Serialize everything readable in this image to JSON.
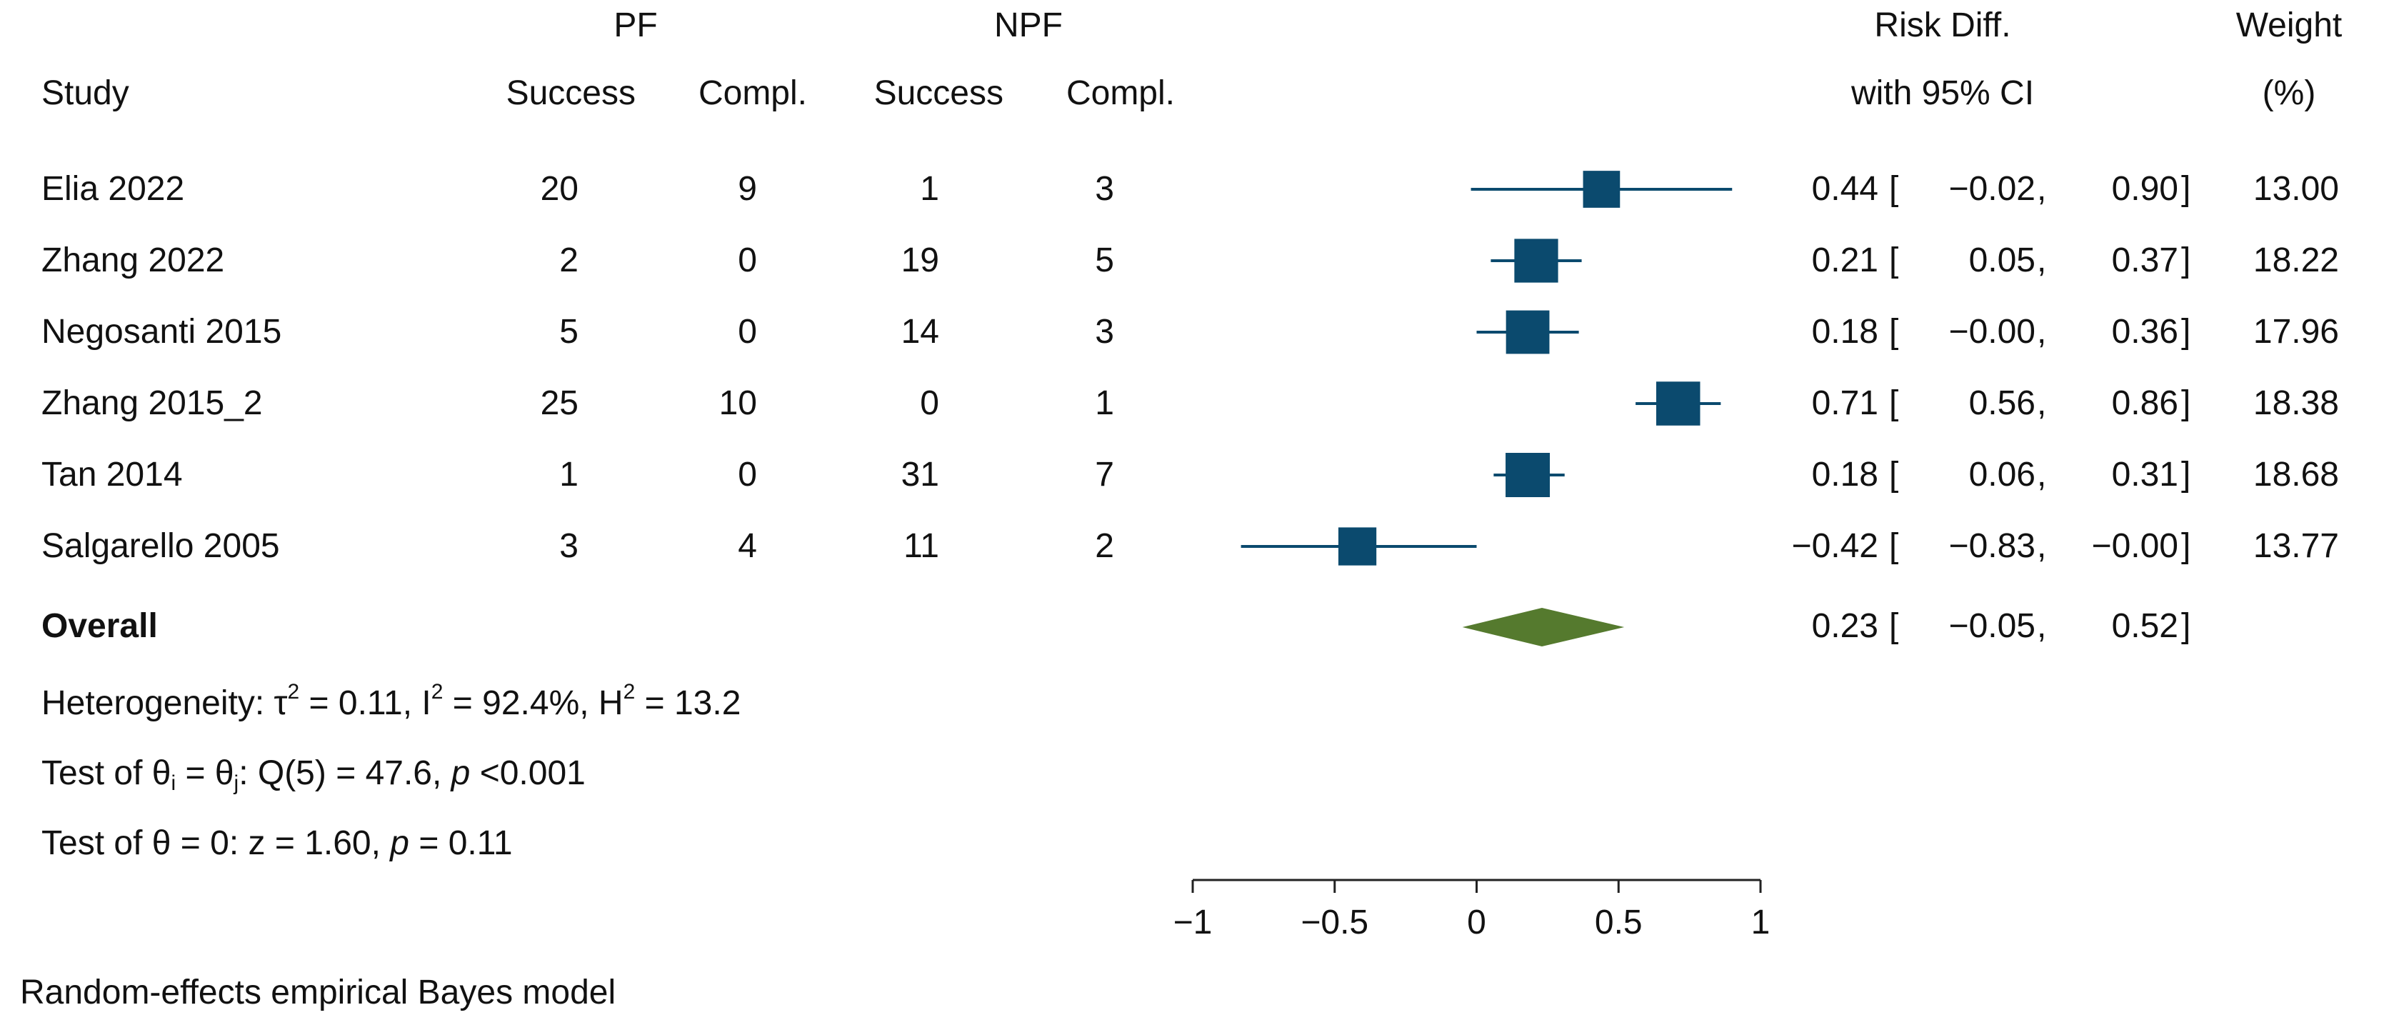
{
  "header": {
    "col_study": "Study",
    "group1": "PF",
    "group2": "NPF",
    "success": "Success",
    "compl": "Compl.",
    "rd_line1": "Risk Diff.",
    "rd_line2": "with 95% CI",
    "weight_line1": "Weight",
    "weight_line2": "(%)"
  },
  "rows": [
    {
      "study": "Elia 2022",
      "pf_success": "20",
      "pf_compl": "9",
      "npf_success": "1",
      "npf_compl": "3",
      "rd": "0.44",
      "lo": "−0.02",
      "hi": "0.90",
      "weight": "13.00"
    },
    {
      "study": "Zhang 2022",
      "pf_success": "2",
      "pf_compl": "0",
      "npf_success": "19",
      "npf_compl": "5",
      "rd": "0.21",
      "lo": "0.05",
      "hi": "0.37",
      "weight": "18.22"
    },
    {
      "study": "Negosanti 2015",
      "pf_success": "5",
      "pf_compl": "0",
      "npf_success": "14",
      "npf_compl": "3",
      "rd": "0.18",
      "lo": "−0.00",
      "hi": "0.36",
      "weight": "17.96"
    },
    {
      "study": "Zhang 2015_2",
      "pf_success": "25",
      "pf_compl": "10",
      "npf_success": "0",
      "npf_compl": "1",
      "rd": "0.71",
      "lo": "0.56",
      "hi": "0.86",
      "weight": "18.38"
    },
    {
      "study": "Tan 2014",
      "pf_success": "1",
      "pf_compl": "0",
      "npf_success": "31",
      "npf_compl": "7",
      "rd": "0.18",
      "lo": "0.06",
      "hi": "0.31",
      "weight": "18.68"
    },
    {
      "study": "Salgarello 2005",
      "pf_success": "3",
      "pf_compl": "4",
      "npf_success": "11",
      "npf_compl": "2",
      "rd": "−0.42",
      "lo": "−0.83",
      "hi": "−0.00",
      "weight": "13.77"
    }
  ],
  "overall": {
    "label": "Overall",
    "rd": "0.23",
    "lo": "−0.05",
    "hi": "0.52"
  },
  "stats": {
    "het_prefix": "Heterogeneity: τ",
    "het_tau_val": " = 0.11, I",
    "het_i2_val": " = 92.4%, H",
    "het_h2_val": " = 13.2",
    "test1_prefix": "Test of θ",
    "test1_sub_i": "i",
    "test1_mid": " = θ",
    "test1_sub_j": "j",
    "test1_suffix": ": Q(5) = 47.6, ",
    "p": "p",
    "test1_p": " <0.001",
    "test2_prefix": "Test of θ = 0: z = 1.60, ",
    "test2_p": " = 0.11",
    "sup2": "2"
  },
  "footer": "Random-effects empirical Bayes model",
  "colors": {
    "marker": "#0b4a6e",
    "diamond": "#557a2e",
    "axis": "#222222"
  },
  "chart_data": {
    "type": "forest",
    "title": "",
    "xlabel": "",
    "xlim": [
      -1,
      1
    ],
    "ticks": [
      -1,
      -0.5,
      0,
      0.5,
      1
    ],
    "tick_labels": [
      "−1",
      "−0.5",
      "0",
      "0.5",
      "1"
    ],
    "studies": [
      {
        "study": "Elia 2022",
        "rd": 0.44,
        "lo": -0.02,
        "hi": 0.9,
        "weight": 13.0
      },
      {
        "study": "Zhang 2022",
        "rd": 0.21,
        "lo": 0.05,
        "hi": 0.37,
        "weight": 18.22
      },
      {
        "study": "Negosanti 2015",
        "rd": 0.18,
        "lo": -0.0,
        "hi": 0.36,
        "weight": 17.96
      },
      {
        "study": "Zhang 2015_2",
        "rd": 0.71,
        "lo": 0.56,
        "hi": 0.86,
        "weight": 18.38
      },
      {
        "study": "Tan 2014",
        "rd": 0.18,
        "lo": 0.06,
        "hi": 0.31,
        "weight": 18.68
      },
      {
        "study": "Salgarello 2005",
        "rd": -0.42,
        "lo": -0.83,
        "hi": -0.0,
        "weight": 13.77
      }
    ],
    "overall": {
      "rd": 0.23,
      "lo": -0.05,
      "hi": 0.52
    }
  }
}
